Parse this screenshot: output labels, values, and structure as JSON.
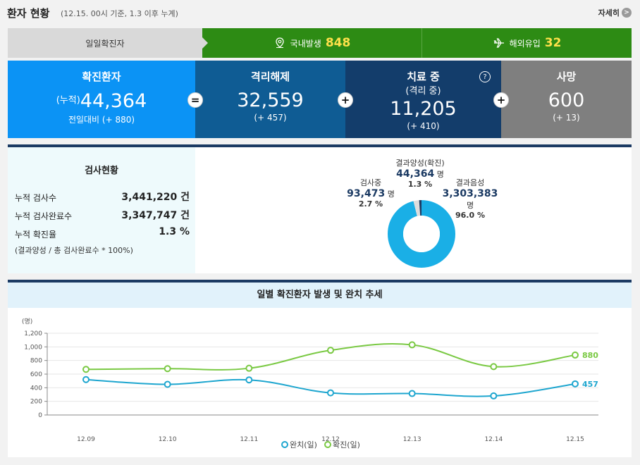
{
  "header": {
    "title": "환자 현황",
    "subtitle": "(12.15. 00시 기준, 1.3 이후 누계)",
    "more_label": "자세히",
    "more_icon": ">"
  },
  "daily": {
    "label": "일일확진자",
    "domestic_label": "국내발생",
    "domestic_value": "848",
    "overseas_label": "해외유입",
    "overseas_value": "32"
  },
  "status": {
    "confirmed": {
      "title": "확진환자",
      "prefix": "(누적)",
      "value": "44,364",
      "delta": "전일대비 (+ 880)"
    },
    "released": {
      "title": "격리해제",
      "value": "32,559",
      "delta": "(+ 457)"
    },
    "treating": {
      "title": "치료 중",
      "sub": "(격리 중)",
      "value": "11,205",
      "delta": "(+ 410)"
    },
    "death": {
      "title": "사망",
      "value": "600",
      "delta": "(+ 13)"
    },
    "ops": [
      "=",
      "+",
      "+"
    ],
    "help_icon": "?"
  },
  "tests": {
    "title": "검사현황",
    "rows": [
      {
        "label": "누적 검사수",
        "value": "3,441,220 건"
      },
      {
        "label": "누적 검사완료수",
        "value": "3,347,747 건"
      },
      {
        "label": "누적 확진율",
        "value": "1.3 %"
      }
    ],
    "note": "(결과양성 / 총 검사완료수 * 100%)",
    "pie": {
      "positive": {
        "label": "결과양성(확진)",
        "value": "44,364",
        "unit": "명",
        "pct": "1.3 %",
        "pct_value": 1.3
      },
      "testing": {
        "label": "검사중",
        "value": "93,473",
        "unit": "명",
        "pct": "2.7 %",
        "pct_value": 2.7
      },
      "negative": {
        "label": "결과음성",
        "value": "3,303,383",
        "unit": "명",
        "pct": "96.0 %",
        "pct_value": 96.0
      },
      "colors": {
        "negative": "#1aafe6",
        "testing": "#dddddd",
        "positive": "#1b3a63"
      }
    }
  },
  "chart_data": {
    "type": "line",
    "title": "일별 확진환자 발생 및 완치 추세",
    "ylabel": "(명)",
    "categories": [
      "12.09",
      "12.10",
      "12.11",
      "12.12",
      "12.13",
      "12.14",
      "12.15"
    ],
    "yticks": [
      "0",
      "200",
      "400",
      "600",
      "800",
      "1,000",
      "1,200"
    ],
    "ylim": [
      0,
      1200
    ],
    "grid": true,
    "legend_position": "bottom",
    "series": [
      {
        "name": "완치(일)",
        "color": "#1ea6cf",
        "values": [
          520,
          450,
          515,
          325,
          315,
          280,
          457
        ],
        "end_label": "457"
      },
      {
        "name": "확진(일)",
        "color": "#7ac943",
        "values": [
          670,
          680,
          686,
          950,
          1030,
          710,
          880
        ],
        "end_label": "880"
      }
    ]
  }
}
